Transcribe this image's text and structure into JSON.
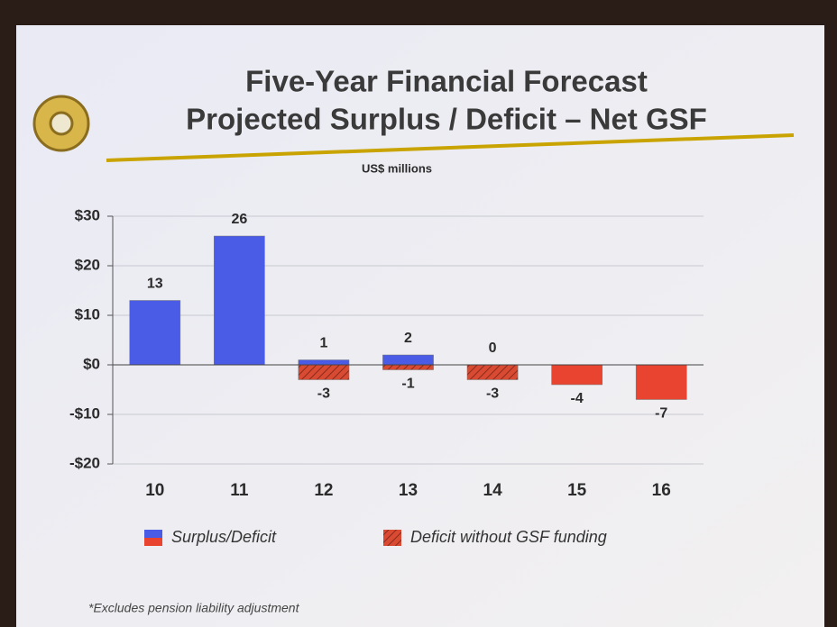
{
  "title_lines": [
    "Five-Year Financial Forecast",
    "Projected Surplus / Deficit – Net GSF"
  ],
  "footnote": "*Excludes pension liability adjustment",
  "chart_data": {
    "type": "bar",
    "subtitle": "US$ millions",
    "categories": [
      "10",
      "11",
      "12",
      "13",
      "14",
      "15",
      "16"
    ],
    "series": [
      {
        "name": "Surplus/Deficit",
        "color": "#4a5ce6",
        "negative_color": "#e8442f",
        "values": [
          13,
          26,
          1,
          2,
          0,
          -4,
          -7
        ]
      },
      {
        "name": "Deficit without GSF funding",
        "color": "#d84a32",
        "hatched": true,
        "values": [
          null,
          null,
          -3,
          -1,
          -3,
          null,
          null
        ]
      }
    ],
    "ylim": [
      -20,
      30
    ],
    "yticks": [
      {
        "value": -20,
        "label": "-$20"
      },
      {
        "value": -10,
        "label": "-$10"
      },
      {
        "value": 0,
        "label": "$0"
      },
      {
        "value": 10,
        "label": "$10"
      },
      {
        "value": 20,
        "label": "$20"
      },
      {
        "value": 30,
        "label": "$30"
      }
    ],
    "grid": true
  }
}
